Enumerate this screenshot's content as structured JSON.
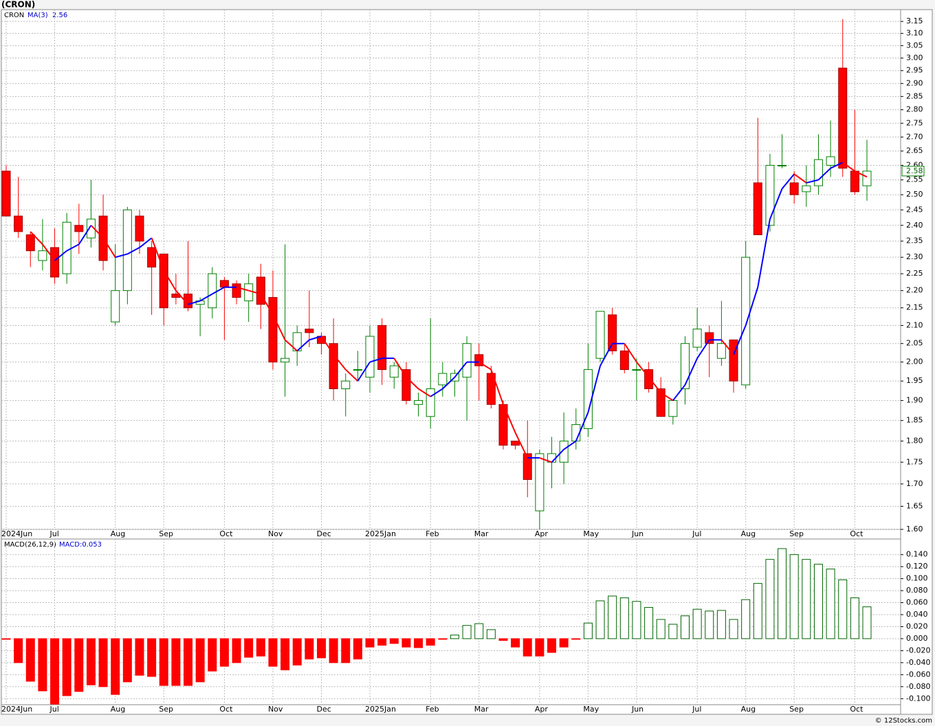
{
  "chart_data": [
    {
      "type": "candlestick",
      "title": "(CRON)",
      "symbol": "CRON",
      "source": "© 12Stocks.com",
      "categories": [
        "2024Jun",
        null,
        null,
        null,
        "Jul",
        null,
        null,
        null,
        null,
        "Aug",
        null,
        null,
        null,
        "Sep",
        null,
        null,
        null,
        null,
        "Oct",
        null,
        null,
        null,
        "Nov",
        null,
        null,
        null,
        "Dec",
        null,
        null,
        null,
        "2025Jan",
        null,
        null,
        null,
        null,
        "Feb",
        null,
        null,
        null,
        "Mar",
        null,
        null,
        null,
        null,
        "Apr",
        null,
        null,
        null,
        "May",
        null,
        null,
        null,
        "Jun",
        null,
        null,
        null,
        null,
        "Jul",
        null,
        null,
        null,
        "Aug",
        null,
        null,
        null,
        "Sep",
        null,
        null,
        null,
        null,
        "Oct",
        null
      ],
      "open": [
        2.58,
        2.43,
        2.37,
        2.29,
        2.33,
        2.25,
        2.4,
        2.36,
        2.43,
        2.11,
        2.2,
        2.43,
        2.33,
        2.31,
        2.19,
        2.19,
        2.16,
        2.15,
        2.23,
        2.22,
        2.17,
        2.24,
        2.18,
        2.0,
        2.03,
        2.09,
        2.07,
        2.05,
        1.93,
        1.98,
        1.96,
        2.1,
        1.96,
        1.98,
        1.89,
        1.86,
        1.94,
        1.95,
        1.96,
        2.02,
        1.97,
        1.89,
        1.8,
        1.77,
        1.64,
        1.75,
        1.75,
        1.8,
        1.83,
        2.01,
        2.13,
        2.03,
        1.98,
        1.98,
        1.93,
        1.86,
        1.93,
        2.04,
        2.08,
        2.01,
        2.06,
        1.94,
        2.54,
        2.4,
        2.6,
        2.54,
        2.51,
        2.53,
        2.6,
        2.96,
        2.58,
        2.53
      ],
      "high": [
        2.6,
        2.56,
        2.38,
        2.42,
        2.39,
        2.44,
        2.47,
        2.55,
        2.5,
        2.34,
        2.46,
        2.45,
        2.35,
        2.31,
        2.25,
        2.35,
        2.18,
        2.27,
        2.24,
        2.23,
        2.25,
        2.28,
        2.26,
        2.34,
        2.1,
        2.2,
        2.08,
        2.12,
        1.97,
        2.03,
        2.1,
        2.12,
        2.0,
        2.0,
        1.92,
        2.12,
        2.0,
        1.98,
        2.07,
        2.05,
        1.99,
        1.9,
        1.8,
        1.85,
        1.78,
        1.81,
        1.87,
        1.88,
        2.05,
        2.14,
        2.15,
        2.05,
        2.01,
        2.0,
        1.96,
        1.9,
        2.07,
        2.15,
        2.1,
        2.17,
        2.06,
        2.35,
        2.77,
        2.64,
        2.71,
        2.58,
        2.6,
        2.71,
        2.76,
        3.16,
        2.8,
        2.69
      ],
      "low": [
        2.43,
        2.36,
        2.27,
        2.26,
        2.22,
        2.22,
        2.31,
        2.33,
        2.26,
        2.1,
        2.16,
        2.31,
        2.13,
        2.1,
        2.16,
        2.14,
        2.07,
        2.12,
        2.06,
        2.16,
        2.11,
        2.09,
        1.98,
        1.91,
        1.99,
        2.04,
        2.02,
        1.9,
        1.86,
        1.95,
        1.92,
        1.94,
        1.93,
        1.89,
        1.86,
        1.83,
        1.91,
        1.91,
        1.85,
        1.9,
        1.88,
        1.78,
        1.78,
        1.67,
        1.6,
        1.69,
        1.7,
        1.78,
        1.81,
        2.0,
        2.02,
        1.97,
        1.9,
        1.92,
        1.86,
        1.84,
        1.89,
        2.03,
        1.96,
        1.99,
        1.92,
        1.93,
        2.37,
        2.38,
        2.59,
        2.47,
        2.46,
        2.5,
        2.56,
        2.56,
        2.5,
        2.48
      ],
      "close": [
        2.43,
        2.38,
        2.32,
        2.32,
        2.24,
        2.41,
        2.38,
        2.42,
        2.29,
        2.2,
        2.45,
        2.35,
        2.27,
        2.15,
        2.18,
        2.15,
        2.17,
        2.25,
        2.21,
        2.18,
        2.22,
        2.16,
        2.0,
        2.01,
        2.08,
        2.08,
        2.05,
        1.93,
        1.95,
        1.98,
        2.07,
        1.98,
        1.99,
        1.9,
        1.9,
        1.93,
        1.97,
        1.97,
        2.05,
        1.99,
        1.89,
        1.79,
        1.79,
        1.71,
        1.77,
        1.77,
        1.8,
        1.84,
        1.98,
        2.14,
        2.03,
        1.98,
        1.98,
        1.93,
        1.86,
        1.9,
        2.05,
        2.09,
        2.05,
        2.05,
        1.95,
        2.3,
        2.37,
        2.6,
        2.6,
        2.5,
        2.53,
        2.62,
        2.63,
        2.59,
        2.51,
        2.58
      ],
      "up_color": "#008000",
      "down_color": "#ff0000",
      "ma": {
        "name": "MA(3)",
        "up_color": "#0000ff",
        "down_color": "#ff0000",
        "values": [
          null,
          null,
          2.38,
          2.34,
          2.29,
          2.32,
          2.34,
          2.4,
          2.36,
          2.3,
          2.31,
          2.33,
          2.36,
          2.26,
          2.2,
          2.16,
          2.17,
          2.19,
          2.21,
          2.21,
          2.2,
          2.19,
          2.13,
          2.06,
          2.03,
          2.06,
          2.07,
          2.02,
          1.98,
          1.95,
          2.0,
          2.01,
          2.01,
          1.96,
          1.93,
          1.91,
          1.93,
          1.96,
          2.0,
          2.0,
          1.98,
          1.89,
          1.82,
          1.76,
          1.76,
          1.75,
          1.78,
          1.8,
          1.87,
          1.99,
          2.05,
          2.05,
          2.0,
          1.96,
          1.92,
          1.9,
          1.94,
          2.01,
          2.06,
          2.06,
          2.02,
          2.1,
          2.21,
          2.42,
          2.52,
          2.57,
          2.54,
          2.55,
          2.59,
          2.61,
          2.58,
          2.56
        ]
      },
      "log_scale": true,
      "grid": true,
      "ylim": [
        1.6,
        3.2
      ],
      "yticks": [
        {
          "value": 1.6,
          "label": "1.60"
        },
        1.65,
        {
          "value": 1.7,
          "label": "1.70"
        },
        1.75,
        {
          "value": 1.8,
          "label": "1.80"
        },
        1.85,
        {
          "value": 1.9,
          "label": "1.90"
        },
        1.95,
        {
          "value": 2,
          "label": "2.00"
        },
        2.05,
        {
          "value": 2.1,
          "label": "2.10"
        },
        2.15,
        {
          "value": 2.2,
          "label": "2.20"
        },
        2.25,
        {
          "value": 2.3,
          "label": "2.30"
        },
        2.35,
        {
          "value": 2.4,
          "label": "2.40"
        },
        2.45,
        {
          "value": 2.5,
          "label": "2.50"
        },
        2.55,
        {
          "value": 2.6,
          "label": "2.60"
        },
        2.65,
        {
          "value": 2.7,
          "label": "2.70"
        },
        2.75,
        {
          "value": 2.8,
          "label": "2.80"
        },
        2.85,
        {
          "value": 2.9,
          "label": "2.90"
        },
        2.95,
        {
          "value": 3,
          "label": "3.00"
        },
        3.05,
        {
          "value": 3.1,
          "label": "3.10"
        },
        3.15
      ]
    },
    {
      "type": "bar",
      "name": "MACD(26,12,9)",
      "value_label": "MACD:0.053",
      "positive_color": "#006400",
      "negative_color": "#ff0000",
      "grid": true,
      "values": [
        -0.001,
        -0.04,
        -0.071,
        -0.087,
        -0.109,
        -0.095,
        -0.088,
        -0.077,
        -0.08,
        -0.093,
        -0.072,
        -0.061,
        -0.063,
        -0.078,
        -0.078,
        -0.078,
        -0.072,
        -0.054,
        -0.046,
        -0.04,
        -0.031,
        -0.029,
        -0.046,
        -0.052,
        -0.044,
        -0.034,
        -0.032,
        -0.04,
        -0.04,
        -0.034,
        -0.014,
        -0.011,
        -0.008,
        -0.014,
        -0.015,
        -0.011,
        -0.001,
        0.006,
        0.022,
        0.025,
        0.015,
        -0.003,
        -0.014,
        -0.029,
        -0.029,
        -0.023,
        -0.014,
        -0.001,
        0.026,
        0.063,
        0.071,
        0.068,
        0.062,
        0.052,
        0.032,
        0.024,
        0.038,
        0.049,
        0.046,
        0.047,
        0.032,
        0.065,
        0.092,
        0.132,
        0.15,
        0.14,
        0.132,
        0.124,
        0.116,
        0.098,
        0.068,
        0.053
      ],
      "ylim": [
        -0.11,
        0.166
      ],
      "yticks": [
        {
          "value": -0.1,
          "label": "-0.100"
        },
        {
          "value": -0.08,
          "label": "-0.080"
        },
        {
          "value": -0.06,
          "label": "-0.060"
        },
        {
          "value": -0.04,
          "label": "-0.040"
        },
        {
          "value": -0.02,
          "label": "-0.020"
        },
        {
          "value": 0,
          "label": "0.000"
        },
        {
          "value": 0.02,
          "label": "0.020"
        },
        {
          "value": 0.04,
          "label": "0.040"
        },
        {
          "value": 0.06,
          "label": "0.060"
        },
        {
          "value": 0.08,
          "label": "0.080"
        },
        {
          "value": 0.1,
          "label": "0.100"
        },
        {
          "value": 0.12,
          "label": "0.120"
        },
        {
          "value": 0.14,
          "label": "0.140"
        }
      ]
    }
  ]
}
